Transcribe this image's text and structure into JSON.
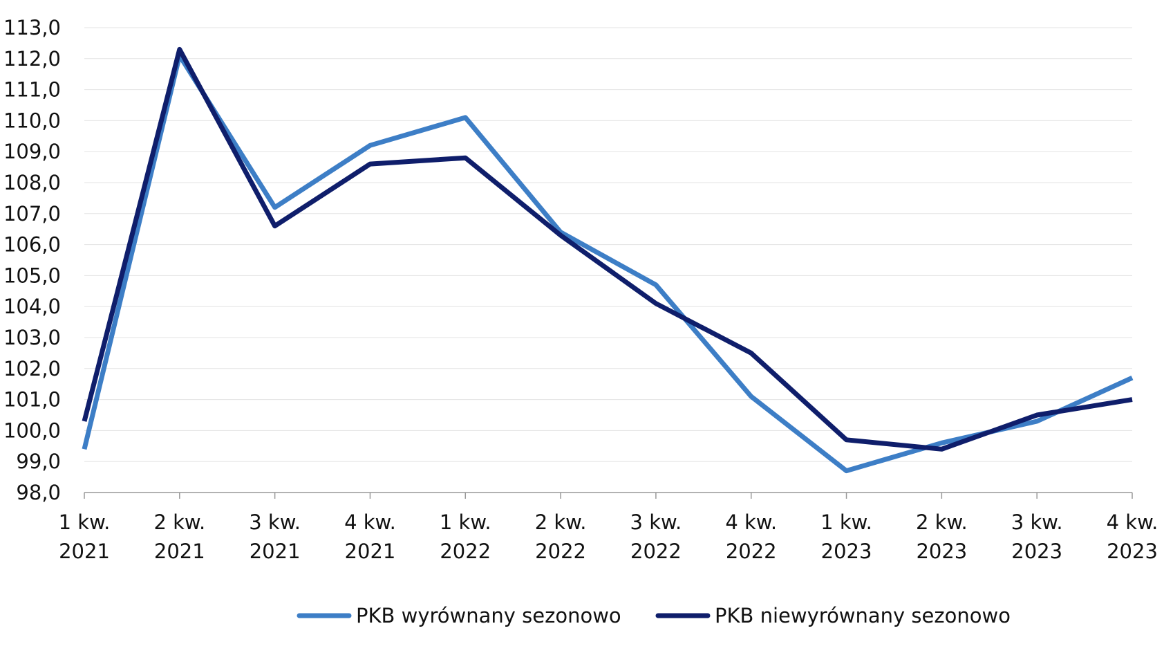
{
  "chart_data": {
    "type": "line",
    "categories": [
      [
        "1 kw.",
        "2021"
      ],
      [
        "2 kw.",
        "2021"
      ],
      [
        "3 kw.",
        "2021"
      ],
      [
        "4 kw.",
        "2021"
      ],
      [
        "1 kw.",
        "2022"
      ],
      [
        "2 kw.",
        "2022"
      ],
      [
        "3 kw.",
        "2022"
      ],
      [
        "4 kw.",
        "2022"
      ],
      [
        "1 kw.",
        "2023"
      ],
      [
        "2 kw.",
        "2023"
      ],
      [
        "3 kw.",
        "2023"
      ],
      [
        "4 kw.",
        "2023"
      ]
    ],
    "series": [
      {
        "name": "PKB wyrównany sezonowo",
        "color": "#3d7ec6",
        "values": [
          99.4,
          112.1,
          107.2,
          109.2,
          110.1,
          106.4,
          104.7,
          101.1,
          98.7,
          99.6,
          100.3,
          101.7
        ]
      },
      {
        "name": "PKB niewyrównany sezonowo",
        "color": "#0f1e6b",
        "values": [
          100.3,
          112.3,
          106.6,
          108.6,
          108.8,
          106.3,
          104.1,
          102.5,
          99.7,
          99.4,
          100.5,
          101.0
        ]
      }
    ],
    "ylim": [
      98,
      113
    ],
    "yticks": [
      "98,0",
      "99,0",
      "100,0",
      "101,0",
      "102,0",
      "103,0",
      "104,0",
      "105,0",
      "106,0",
      "107,0",
      "108,0",
      "109,0",
      "110,0",
      "111,0",
      "112,0",
      "113,0"
    ],
    "grid": true,
    "legend": "bottom-center"
  }
}
